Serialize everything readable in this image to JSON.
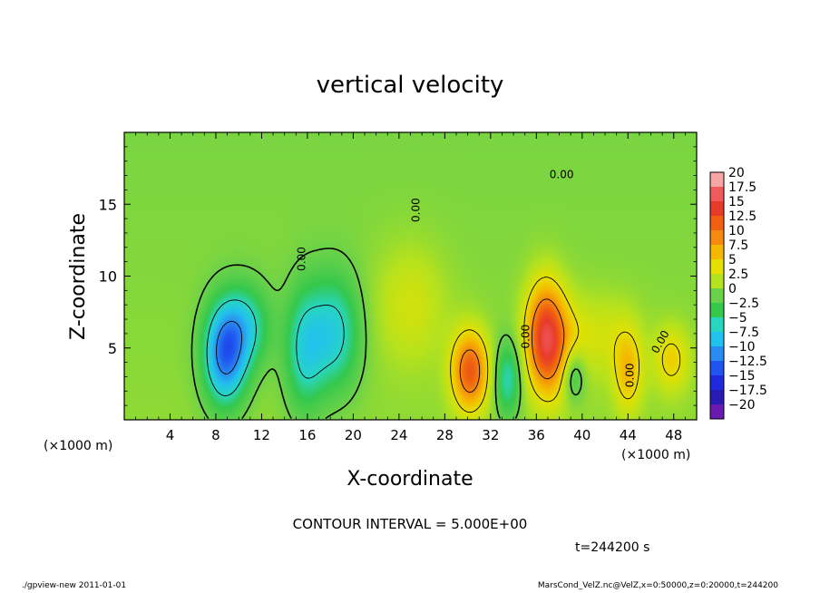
{
  "chart_data": {
    "type": "heatmap",
    "title": "vertical velocity",
    "xlabel": "X-coordinate",
    "ylabel": "Z-coordinate",
    "x_unit_left": "(×1000 m)",
    "x_unit_right": "(×1000 m)",
    "xlim": [
      0,
      50
    ],
    "ylim": [
      0,
      20
    ],
    "x_ticks": [
      4,
      8,
      12,
      16,
      20,
      24,
      28,
      32,
      36,
      40,
      44,
      48
    ],
    "y_ticks": [
      5,
      10,
      15
    ],
    "colorbar_levels": [
      "20",
      "17.5",
      "15",
      "12.5",
      "10",
      "7.5",
      "5",
      "2.5",
      "0",
      "-2.5",
      "-5",
      "-7.5",
      "-10",
      "-12.5",
      "-15",
      "-17.5",
      "-20"
    ],
    "colorbar_colors": [
      "#f7a6a6",
      "#f05a5a",
      "#e83a2a",
      "#f06010",
      "#f48a10",
      "#f5b800",
      "#e6e000",
      "#b5e21e",
      "#6ad24a",
      "#35c84c",
      "#28d6c0",
      "#22c2ee",
      "#2a8cf0",
      "#1f54f0",
      "#1e2adc",
      "#2a1ab4",
      "#6a1ab0"
    ],
    "contour_labels": [
      "0.00",
      "0.00",
      "0.00",
      "0.00",
      "0.00",
      "0.00"
    ],
    "contour_interval": "CONTOUR INTERVAL = 5.000E+00",
    "time_label": "t=244200 s",
    "features": [
      {
        "x": 8.8,
        "z": 4.5,
        "value": -12,
        "sx": 1.3,
        "sz": 2.4
      },
      {
        "x": 10.6,
        "z": 6.5,
        "value": -6,
        "sx": 1.5,
        "sz": 2.0
      },
      {
        "x": 15.7,
        "z": 4.8,
        "value": -6,
        "sx": 1.2,
        "sz": 3.0
      },
      {
        "x": 18.3,
        "z": 6.0,
        "value": -7,
        "sx": 1.6,
        "sz": 2.8
      },
      {
        "x": 30.2,
        "z": 3.4,
        "value": 12,
        "sx": 1.1,
        "sz": 1.9
      },
      {
        "x": 33.5,
        "z": 2.8,
        "value": -6,
        "sx": 0.8,
        "sz": 1.8
      },
      {
        "x": 36.8,
        "z": 5.8,
        "value": 14,
        "sx": 1.2,
        "sz": 2.6
      },
      {
        "x": 38.6,
        "z": 4.6,
        "value": 4,
        "sx": 1.5,
        "sz": 2.4
      },
      {
        "x": 39.2,
        "z": 3.2,
        "value": -6,
        "sx": 0.8,
        "sz": 1.4
      },
      {
        "x": 44.0,
        "z": 3.4,
        "value": 6,
        "sx": 0.9,
        "sz": 2.0
      },
      {
        "x": 47.8,
        "z": 4.2,
        "value": 5,
        "sx": 1.1,
        "sz": 1.6
      },
      {
        "x": 25.0,
        "z": 8.0,
        "value": 3,
        "sx": 2.2,
        "sz": 3.0
      },
      {
        "x": 42.0,
        "z": 6.0,
        "value": 2.5,
        "sx": 2.0,
        "sz": 2.0
      }
    ]
  },
  "footer": {
    "left": "./gpview-new  2011-01-01",
    "right": "MarsCond_VelZ.nc@VelZ,x=0:50000,z=0:20000,t=244200"
  }
}
